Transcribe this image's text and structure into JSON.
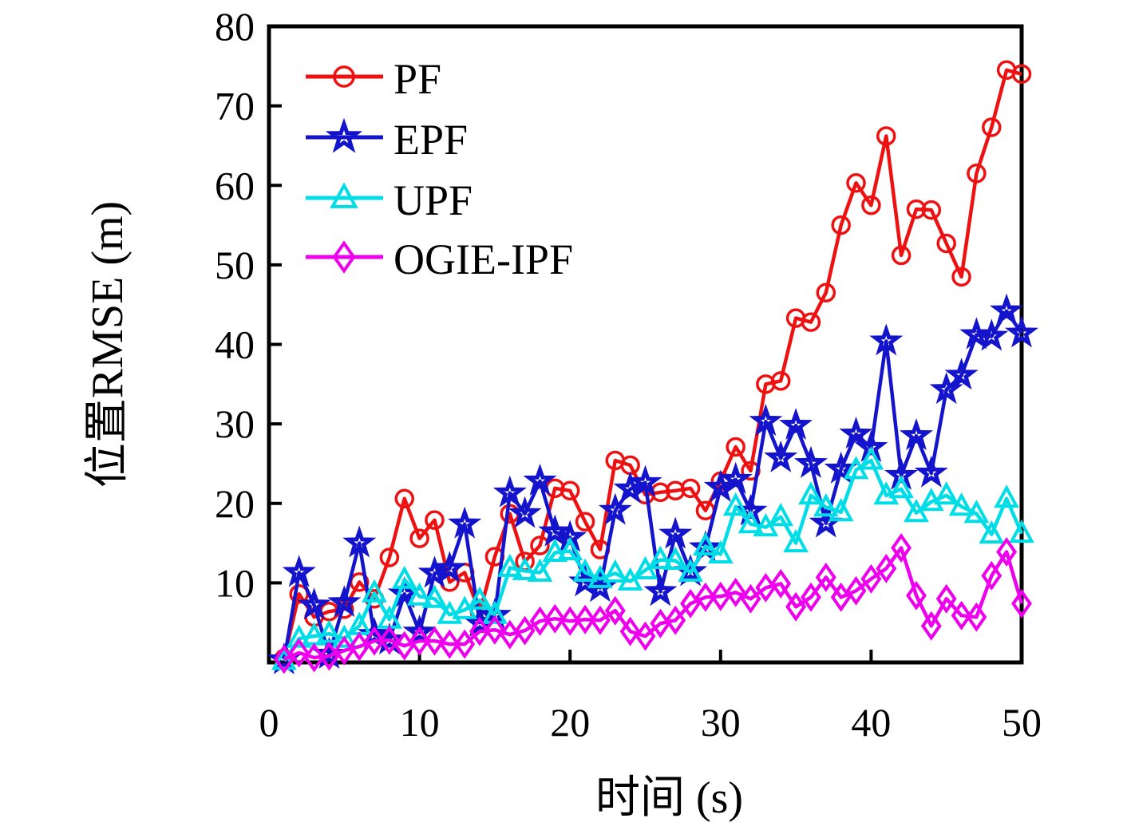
{
  "chart_data": {
    "type": "line",
    "title": "",
    "xlabel": "时间 (s)",
    "ylabel": "位置RMSE (m)",
    "xlim": [
      0,
      50
    ],
    "ylim": [
      0,
      80
    ],
    "xticks": [
      0,
      10,
      20,
      30,
      40,
      50
    ],
    "yticks": [
      10,
      20,
      30,
      40,
      50,
      60,
      70,
      80
    ],
    "grid": false,
    "legend": {
      "position": "upper-left-inside"
    },
    "x": [
      1,
      2,
      3,
      4,
      5,
      6,
      7,
      8,
      9,
      10,
      11,
      12,
      13,
      14,
      15,
      16,
      17,
      18,
      19,
      20,
      21,
      22,
      23,
      24,
      25,
      26,
      27,
      28,
      29,
      30,
      31,
      32,
      33,
      34,
      35,
      36,
      37,
      38,
      39,
      40,
      41,
      42,
      43,
      44,
      45,
      46,
      47,
      48,
      49,
      50
    ],
    "series": [
      {
        "name": "PF",
        "color": "#ee1111",
        "marker": "circle",
        "values": [
          0.5,
          8.6,
          5.7,
          6.4,
          6.7,
          10.1,
          8.0,
          13.2,
          20.6,
          15.6,
          17.9,
          10.1,
          11.3,
          6.3,
          13.3,
          18.7,
          12.7,
          14.7,
          21.9,
          21.6,
          17.7,
          14.2,
          25.4,
          24.8,
          21.1,
          21.4,
          21.6,
          21.9,
          19.1,
          22.8,
          27.1,
          24.1,
          35.0,
          35.4,
          43.3,
          42.8,
          46.5,
          55.0,
          60.3,
          57.5,
          66.2,
          51.2,
          57.0,
          56.9,
          52.7,
          48.5,
          61.5,
          67.3,
          74.5,
          74.0
        ]
      },
      {
        "name": "EPF",
        "color": "#1414cc",
        "marker": "star",
        "values": [
          0.3,
          11.3,
          7.2,
          1.0,
          7.5,
          15.0,
          3.5,
          2.8,
          8.6,
          3.8,
          11.2,
          11.8,
          17.4,
          5.0,
          5.9,
          21.3,
          18.7,
          22.8,
          16.4,
          15.7,
          10.1,
          9.4,
          19.1,
          21.8,
          22.6,
          8.9,
          16.1,
          11.4,
          14.4,
          22.0,
          23.0,
          19.0,
          30.3,
          25.7,
          29.8,
          25.0,
          17.5,
          24.3,
          28.7,
          27.0,
          40.4,
          23.5,
          28.5,
          23.8,
          34.3,
          36.1,
          41.2,
          41.0,
          44.2,
          41.4
        ]
      },
      {
        "name": "UPF",
        "color": "#00dde6",
        "marker": "triangle",
        "values": [
          0.2,
          3.0,
          3.3,
          3.6,
          3.0,
          4.6,
          8.7,
          5.4,
          10.4,
          8.3,
          8.0,
          6.0,
          6.6,
          7.8,
          6.0,
          11.9,
          11.5,
          11.3,
          13.8,
          14.0,
          11.3,
          10.5,
          11.2,
          10.2,
          11.6,
          12.9,
          12.8,
          11.3,
          14.6,
          13.6,
          19.6,
          17.4,
          17.0,
          18.3,
          15.0,
          21.0,
          19.5,
          18.9,
          24.2,
          25.4,
          21.0,
          21.8,
          18.8,
          20.2,
          21.0,
          19.6,
          18.7,
          16.1,
          20.6,
          16.2
        ]
      },
      {
        "name": "OGIE-IPF",
        "color": "#ee00ee",
        "marker": "diamond",
        "values": [
          0.4,
          1.2,
          0.6,
          0.8,
          1.5,
          2.0,
          2.7,
          2.8,
          2.1,
          2.7,
          2.7,
          2.3,
          2.3,
          3.9,
          4.1,
          3.5,
          4.0,
          5.2,
          5.5,
          5.2,
          5.4,
          5.3,
          6.5,
          3.9,
          3.3,
          4.9,
          5.3,
          7.4,
          8.2,
          8.3,
          8.8,
          8.0,
          9.4,
          9.9,
          7.0,
          8.2,
          10.7,
          8.2,
          9.0,
          10.5,
          11.8,
          14.4,
          8.4,
          4.6,
          8.0,
          5.9,
          5.7,
          10.9,
          13.9,
          7.4
        ]
      }
    ]
  },
  "layout_colors": {
    "axis": "#000000",
    "background": "#ffffff",
    "text": "#000000"
  }
}
